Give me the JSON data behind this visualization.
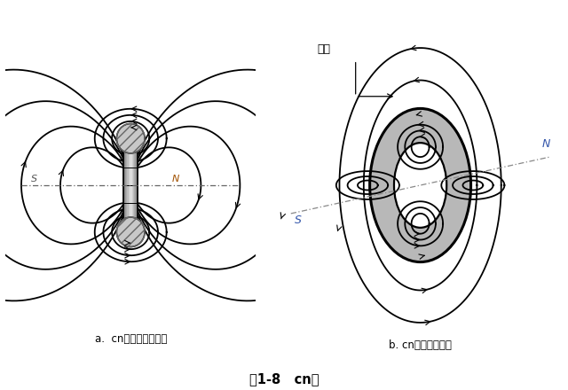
{
  "title": "图1-8   cn场",
  "label_a": "a.  cn粒子截面流线图",
  "label_b": "b. cn场立体示意图",
  "S_left": "S",
  "N_left": "N",
  "S_right": "S",
  "N_right": "N",
  "vortex_label": "涡环",
  "bg_color": "#ffffff",
  "rod_color": "#c0c0c0",
  "rod_hi": "#e8e8e8",
  "rod_dark": "#909090",
  "pole_color": "#c8c8c8",
  "torus_color": "#b8b8b8",
  "lw": 1.3
}
